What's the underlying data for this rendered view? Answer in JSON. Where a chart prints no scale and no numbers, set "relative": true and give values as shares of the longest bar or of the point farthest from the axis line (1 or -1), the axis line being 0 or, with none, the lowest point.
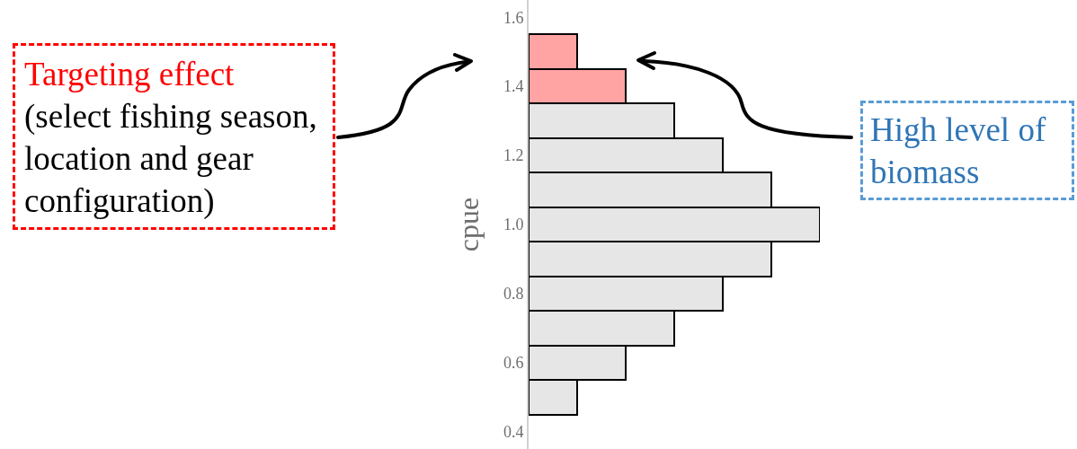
{
  "chart_data": {
    "type": "bar",
    "orientation": "horizontal",
    "relative": true,
    "ylabel": "cpue",
    "x": [
      0.5,
      0.6,
      0.7,
      0.8,
      0.9,
      1.0,
      1.1,
      1.2,
      1.3,
      1.4,
      1.5
    ],
    "values": [
      0.167,
      0.333,
      0.5,
      0.667,
      0.833,
      1,
      0.833,
      0.667,
      0.5,
      0.333,
      0.167
    ],
    "colors": [
      "#e6e6e6",
      "#e6e6e6",
      "#e6e6e6",
      "#e6e6e6",
      "#e6e6e6",
      "#e6e6e6",
      "#e6e6e6",
      "#e6e6e6",
      "#e6e6e6",
      "#ffa3a3",
      "#ffa3a3"
    ],
    "ylim": [
      0.35,
      1.65
    ],
    "yticks": [
      {
        "value": 0.4,
        "label": "0.4"
      },
      {
        "value": 0.6,
        "label": "0.6"
      },
      {
        "value": 0.8,
        "label": "0.8"
      },
      {
        "value": 1,
        "label": "1.0"
      },
      {
        "value": 1.2,
        "label": "1.2"
      },
      {
        "value": 1.4,
        "label": "1.4"
      },
      {
        "value": 1.6,
        "label": "1.6"
      }
    ],
    "annotations": [
      "Targeting effect",
      "(select fishing season, location and gear configuration)",
      "High level of biomass"
    ]
  }
}
